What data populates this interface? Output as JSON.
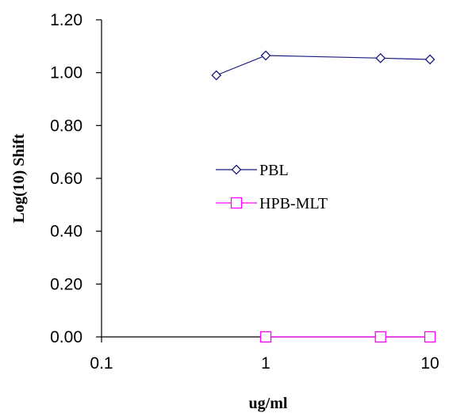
{
  "chart_data": {
    "type": "line",
    "xscale": "log",
    "x_ticks": [
      "0.1",
      "1",
      "10"
    ],
    "y_ticks": [
      "0.00",
      "0.20",
      "0.40",
      "0.60",
      "0.80",
      "1.00",
      "1.20"
    ],
    "xlim": [
      0.1,
      10
    ],
    "ylim": [
      0,
      1.2
    ],
    "xlabel": "ug/ml",
    "ylabel": "Log(10) Shift",
    "grid": false,
    "legend_position": "center",
    "series": [
      {
        "name": "PBL",
        "color": "#1a1a80",
        "marker": "diamond",
        "x": [
          0.5,
          1,
          5,
          10
        ],
        "y": [
          0.99,
          1.065,
          1.055,
          1.05
        ]
      },
      {
        "name": "HPB-MLT",
        "color": "#ff00ff",
        "marker": "square",
        "x": [
          1,
          5,
          10
        ],
        "y": [
          0,
          0,
          0
        ]
      }
    ]
  }
}
